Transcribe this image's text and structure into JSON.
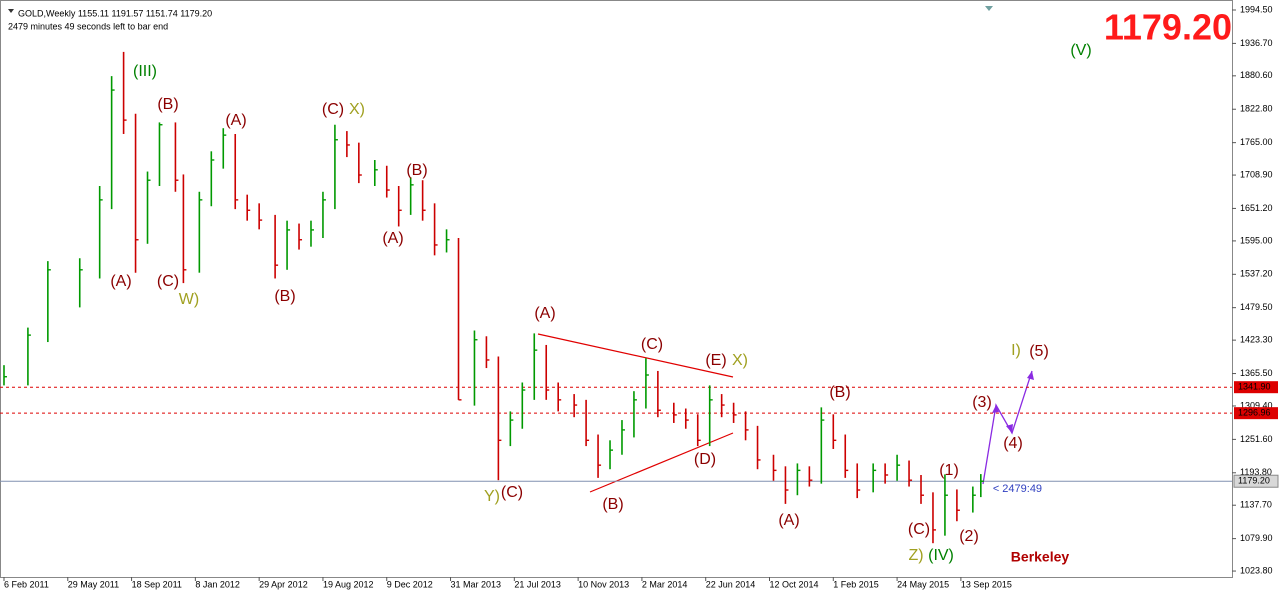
{
  "chart_data": {
    "type": "ohlc",
    "header": "GOLD,Weekly  1155.11 1191.57 1151.74 1179.20",
    "subheader": "2479 minutes 49 seconds left to bar end",
    "countdown": "< 2479:49",
    "up_color": "#009900",
    "down_color": "#cc0000",
    "x": [
      0,
      6,
      11,
      19,
      24,
      27,
      30,
      33,
      36,
      39,
      43,
      45,
      49,
      52,
      55,
      58,
      61,
      64,
      68,
      71,
      74,
      77,
      80,
      83,
      86,
      89,
      93,
      96,
      99,
      102,
      105,
      108,
      111,
      114,
      118,
      121,
      124,
      127,
      130,
      133,
      136,
      139,
      143,
      146,
      149,
      152,
      155,
      158,
      161,
      164,
      168,
      171,
      174,
      177,
      180,
      183,
      186,
      189,
      193,
      196,
      199,
      202,
      205,
      208,
      211,
      214,
      218,
      221,
      224,
      227,
      230,
      233,
      236,
      239,
      243,
      245
    ],
    "high": [
      1380,
      1445,
      1560,
      1565,
      1690,
      1880,
      1922,
      1815,
      1715,
      1800,
      1800,
      1710,
      1680,
      1750,
      1790,
      1780,
      1675,
      1660,
      1640,
      1630,
      1625,
      1630,
      1680,
      1796,
      1785,
      1765,
      1735,
      1725,
      1690,
      1705,
      1700,
      1660,
      1615,
      1600,
      1440,
      1430,
      1395,
      1300,
      1350,
      1435,
      1415,
      1350,
      1330,
      1320,
      1260,
      1250,
      1285,
      1335,
      1392,
      1370,
      1315,
      1305,
      1295,
      1345,
      1330,
      1315,
      1300,
      1275,
      1225,
      1205,
      1210,
      1205,
      1307,
      1295,
      1260,
      1210,
      1210,
      1210,
      1225,
      1215,
      1190,
      1160,
      1191,
      1165,
      1170,
      1191.57
    ],
    "low": [
      1345,
      1345,
      1420,
      1480,
      1530,
      1650,
      1780,
      1540,
      1590,
      1690,
      1680,
      1522,
      1540,
      1655,
      1720,
      1650,
      1630,
      1615,
      1530,
      1545,
      1580,
      1585,
      1600,
      1650,
      1740,
      1695,
      1690,
      1670,
      1620,
      1640,
      1630,
      1570,
      1575,
      1320,
      1310,
      1375,
      1181,
      1240,
      1270,
      1320,
      1320,
      1300,
      1290,
      1240,
      1185,
      1200,
      1225,
      1255,
      1305,
      1290,
      1280,
      1270,
      1240,
      1240,
      1290,
      1280,
      1250,
      1200,
      1180,
      1140,
      1155,
      1170,
      1175,
      1235,
      1185,
      1150,
      1160,
      1175,
      1180,
      1170,
      1140,
      1072,
      1085,
      1110,
      1125,
      1151.74
    ],
    "close": [
      1360,
      1432,
      1545,
      1545,
      1666,
      1856,
      1804,
      1597,
      1700,
      1796,
      1700,
      1545,
      1666,
      1735,
      1778,
      1666,
      1648,
      1631,
      1553,
      1614,
      1597,
      1614,
      1666,
      1770,
      1761,
      1709,
      1718,
      1683,
      1648,
      1692,
      1648,
      1588,
      1597,
      1320,
      1424,
      1389,
      1250,
      1285,
      1337,
      1406,
      1337,
      1320,
      1311,
      1250,
      1207,
      1233,
      1268,
      1320,
      1363,
      1302,
      1294,
      1285,
      1250,
      1320,
      1311,
      1294,
      1268,
      1216,
      1198,
      1164,
      1198,
      1181,
      1285,
      1250,
      1198,
      1164,
      1198,
      1190,
      1207,
      1181,
      1155,
      1095,
      1155,
      1129,
      1155,
      1179.2
    ],
    "xlim": [
      -1,
      308
    ],
    "xticks": [
      {
        "value": 0,
        "label": "6 Feb 2011"
      },
      {
        "value": 16,
        "label": "29 May 2011"
      },
      {
        "value": 32,
        "label": "18 Sep 2011"
      },
      {
        "value": 48,
        "label": "8 Jan 2012"
      },
      {
        "value": 64,
        "label": "29 Apr 2012"
      },
      {
        "value": 80,
        "label": "19 Aug 2012"
      },
      {
        "value": 96,
        "label": "9 Dec 2012"
      },
      {
        "value": 112,
        "label": "31 Mar 2013"
      },
      {
        "value": 128,
        "label": "21 Jul 2013"
      },
      {
        "value": 144,
        "label": "10 Nov 2013"
      },
      {
        "value": 160,
        "label": "2 Mar 2014"
      },
      {
        "value": 176,
        "label": "22 Jun 2014"
      },
      {
        "value": 192,
        "label": "12 Oct 2014"
      },
      {
        "value": 208,
        "label": "1 Feb 2015"
      },
      {
        "value": 224,
        "label": "24 May 2015"
      },
      {
        "value": 240,
        "label": "13 Sep 2015"
      }
    ],
    "ylim": [
      1013.5,
      2011.8
    ],
    "yticks": [
      {
        "value": 1994.5,
        "label": "1994.50"
      },
      {
        "value": 1936.7,
        "label": "1936.70"
      },
      {
        "value": 1880.6,
        "label": "1880.60"
      },
      {
        "value": 1822.8,
        "label": "1822.80"
      },
      {
        "value": 1765,
        "label": "1765.00"
      },
      {
        "value": 1708.9,
        "label": "1708.90"
      },
      {
        "value": 1651.2,
        "label": "1651.20"
      },
      {
        "value": 1595,
        "label": "1595.00"
      },
      {
        "value": 1537.2,
        "label": "1537.20"
      },
      {
        "value": 1479.5,
        "label": "1479.50"
      },
      {
        "value": 1423.3,
        "label": "1423.30"
      },
      {
        "value": 1365.5,
        "label": "1365.50"
      },
      {
        "value": 1309.4,
        "label": "1309.40"
      },
      {
        "value": 1251.6,
        "label": "1251.60"
      },
      {
        "value": 1193.8,
        "label": "1193.80"
      },
      {
        "value": 1137.7,
        "label": "1137.70"
      },
      {
        "value": 1079.9,
        "label": "1079.90"
      },
      {
        "value": 1023.8,
        "label": "1023.80"
      }
    ],
    "levels": [
      {
        "value": 1341.9,
        "label": "1341.90",
        "color": "#dd0000"
      },
      {
        "value": 1296.96,
        "label": "1296.96",
        "color": "#dd0000"
      }
    ],
    "price_line": {
      "value": 1179.2,
      "label": "1179.20",
      "color": "#8090b0"
    },
    "annotations": [
      {
        "text": "(III)",
        "color": "#008000"
      },
      {
        "text": "(B)",
        "color": "#8b0000"
      },
      {
        "text": "(A)",
        "color": "#8b0000"
      },
      {
        "text": "(C)",
        "color": "#8b0000"
      },
      {
        "text": "X)",
        "color": "#a0a020"
      },
      {
        "text": "(B)",
        "color": "#8b0000"
      },
      {
        "text": "(A)",
        "color": "#8b0000"
      },
      {
        "text": "(A)",
        "color": "#8b0000"
      },
      {
        "text": "(C)",
        "color": "#8b0000"
      },
      {
        "text": "W)",
        "color": "#a0a020"
      },
      {
        "text": "(B)",
        "color": "#8b0000"
      },
      {
        "text": "(A)",
        "color": "#8b0000"
      },
      {
        "text": "(C)",
        "color": "#8b0000"
      },
      {
        "text": "(E)",
        "color": "#8b0000"
      },
      {
        "text": "X)",
        "color": "#a0a020"
      },
      {
        "text": "(D)",
        "color": "#8b0000"
      },
      {
        "text": "(B)",
        "color": "#8b0000"
      },
      {
        "text": "Y)",
        "color": "#a0a020"
      },
      {
        "text": "(C)",
        "color": "#8b0000"
      },
      {
        "text": "(A)",
        "color": "#8b0000"
      },
      {
        "text": "(B)",
        "color": "#8b0000"
      },
      {
        "text": "(1)",
        "color": "#8b0000"
      },
      {
        "text": "(2)",
        "color": "#8b0000"
      },
      {
        "text": "(C)",
        "color": "#8b0000"
      },
      {
        "text": "Z)",
        "color": "#a0a020"
      },
      {
        "text": "(IV)",
        "color": "#008000"
      },
      {
        "text": "(3)",
        "color": "#8b0000"
      },
      {
        "text": "(4)",
        "color": "#8b0000"
      },
      {
        "text": "I)",
        "color": "#a0a020"
      },
      {
        "text": "(5)",
        "color": "#8b0000"
      },
      {
        "text": "(V)",
        "color": "#008000"
      },
      {
        "text": "Berkeley",
        "color": "#b00000"
      }
    ]
  }
}
